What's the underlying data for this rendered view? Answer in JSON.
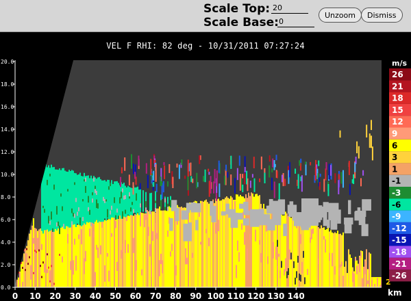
{
  "toolbar": {
    "scale_top_label": "Scale Top:",
    "scale_top_value": "20",
    "scale_base_label": "Scale Base:",
    "scale_base_value": "0",
    "unzoom_label": "Unzoom",
    "dismiss_label": "Dismiss"
  },
  "plot": {
    "title": "VEL F  RHI: 82 deg  -  10/31/2011 07:27:24",
    "x_unit": "km",
    "unit": "m/s",
    "corner_mark": "2",
    "x_ticks": [
      "0",
      "10",
      "20",
      "30",
      "40",
      "50",
      "60",
      "70",
      "80",
      "90",
      "100",
      "110",
      "120",
      "130",
      "140"
    ],
    "y_ticks": [
      "0.0",
      "2.0",
      "4.0",
      "6.0",
      "8.0",
      "10.0",
      "12.0",
      "14.0",
      "16.0",
      "18.0",
      "20.0"
    ],
    "colorbar": [
      {
        "label": "26",
        "color": "#8b0a16",
        "dark": false
      },
      {
        "label": "21",
        "color": "#b41420",
        "dark": false
      },
      {
        "label": "18",
        "color": "#dc2828",
        "dark": false
      },
      {
        "label": "15",
        "color": "#f04040",
        "dark": false
      },
      {
        "label": "12",
        "color": "#ff6a55",
        "dark": false
      },
      {
        "label": "9",
        "color": "#ff9a78",
        "dark": false
      },
      {
        "label": "6",
        "color": "#ffff00",
        "dark": true
      },
      {
        "label": "3",
        "color": "#ffd23c",
        "dark": true
      },
      {
        "label": "1",
        "color": "#f4a266",
        "dark": true
      },
      {
        "label": "-1",
        "color": "#b4b4b4",
        "dark": true
      },
      {
        "label": "-3",
        "color": "#1e8c32",
        "dark": false
      },
      {
        "label": "-6",
        "color": "#00e6a0",
        "dark": true
      },
      {
        "label": "-9",
        "color": "#3cb4ff",
        "dark": false
      },
      {
        "label": "-12",
        "color": "#1e5ae6",
        "dark": false
      },
      {
        "label": "-15",
        "color": "#0a14b4",
        "dark": false
      },
      {
        "label": "-18",
        "color": "#a050f0",
        "dark": false
      },
      {
        "label": "-21",
        "color": "#b41e82",
        "dark": false
      },
      {
        "label": "-26",
        "color": "#8c1e46",
        "dark": false
      }
    ]
  }
}
